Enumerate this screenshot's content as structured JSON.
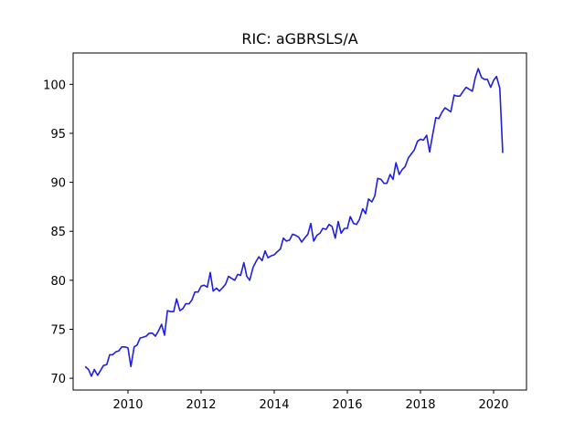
{
  "chart_data": {
    "type": "line",
    "title": "RIC: aGBRSLS/A",
    "xlabel": "",
    "ylabel": "",
    "xlim": [
      2008.5,
      2020.9
    ],
    "ylim": [
      68.8,
      103.2
    ],
    "x_ticks": [
      2010,
      2012,
      2014,
      2016,
      2018,
      2020
    ],
    "y_ticks": [
      70,
      75,
      80,
      85,
      90,
      95,
      100
    ],
    "grid": false,
    "series": [
      {
        "color": "#1f1fe0",
        "x": [
          2008.83,
          2008.92,
          2009.0,
          2009.08,
          2009.17,
          2009.25,
          2009.33,
          2009.42,
          2009.5,
          2009.58,
          2009.67,
          2009.75,
          2009.83,
          2009.92,
          2010.0,
          2010.08,
          2010.17,
          2010.25,
          2010.33,
          2010.42,
          2010.5,
          2010.58,
          2010.67,
          2010.75,
          2010.83,
          2010.92,
          2011.0,
          2011.08,
          2011.17,
          2011.25,
          2011.33,
          2011.42,
          2011.5,
          2011.58,
          2011.67,
          2011.75,
          2011.83,
          2011.92,
          2012.0,
          2012.08,
          2012.17,
          2012.25,
          2012.33,
          2012.42,
          2012.5,
          2012.58,
          2012.67,
          2012.75,
          2012.83,
          2012.92,
          2013.0,
          2013.08,
          2013.17,
          2013.25,
          2013.33,
          2013.42,
          2013.5,
          2013.58,
          2013.67,
          2013.75,
          2013.83,
          2013.92,
          2014.0,
          2014.08,
          2014.17,
          2014.25,
          2014.33,
          2014.42,
          2014.5,
          2014.58,
          2014.67,
          2014.75,
          2014.83,
          2014.92,
          2015.0,
          2015.08,
          2015.17,
          2015.25,
          2015.33,
          2015.42,
          2015.5,
          2015.58,
          2015.67,
          2015.75,
          2015.83,
          2015.92,
          2016.0,
          2016.08,
          2016.17,
          2016.25,
          2016.33,
          2016.42,
          2016.5,
          2016.58,
          2016.67,
          2016.75,
          2016.83,
          2016.92,
          2017.0,
          2017.08,
          2017.17,
          2017.25,
          2017.33,
          2017.42,
          2017.5,
          2017.58,
          2017.67,
          2017.75,
          2017.83,
          2017.92,
          2018.0,
          2018.08,
          2018.17,
          2018.25,
          2018.33,
          2018.42,
          2018.5,
          2018.58,
          2018.67,
          2018.75,
          2018.83,
          2018.92,
          2019.0,
          2019.08,
          2019.17,
          2019.25,
          2019.33,
          2019.42,
          2019.5,
          2019.58,
          2019.67,
          2019.75,
          2019.83,
          2019.92,
          2020.0,
          2020.08,
          2020.17,
          2020.25
        ],
        "values": [
          71.2,
          70.9,
          70.2,
          70.9,
          70.3,
          70.8,
          71.3,
          71.4,
          72.4,
          72.4,
          72.7,
          72.8,
          73.2,
          73.2,
          73.1,
          71.2,
          73.2,
          73.4,
          74.1,
          74.2,
          74.3,
          74.6,
          74.6,
          74.3,
          74.8,
          75.5,
          74.4,
          76.9,
          76.8,
          76.8,
          78.1,
          76.9,
          77.1,
          77.6,
          77.6,
          78.0,
          78.8,
          78.8,
          79.4,
          79.5,
          79.3,
          80.8,
          78.9,
          79.2,
          78.9,
          79.2,
          79.6,
          80.4,
          80.2,
          80.0,
          80.6,
          80.5,
          81.8,
          80.4,
          80.0,
          81.3,
          81.9,
          82.4,
          82.0,
          83.0,
          82.3,
          82.5,
          82.6,
          82.9,
          83.2,
          84.3,
          84.0,
          84.1,
          84.7,
          84.6,
          84.4,
          83.9,
          84.3,
          84.7,
          85.8,
          84.0,
          84.6,
          84.8,
          85.3,
          85.2,
          85.7,
          85.5,
          84.3,
          86.0,
          84.8,
          85.3,
          85.3,
          86.5,
          85.8,
          85.7,
          86.2,
          87.3,
          86.8,
          88.3,
          88.0,
          88.6,
          90.4,
          90.3,
          89.9,
          89.9,
          90.8,
          90.3,
          92.0,
          90.8,
          91.3,
          91.6,
          92.5,
          92.9,
          93.3,
          94.2,
          94.4,
          94.3,
          94.8,
          93.1,
          94.8,
          96.6,
          96.5,
          97.1,
          97.6,
          97.4,
          97.2,
          98.9,
          98.8,
          98.8,
          99.3,
          99.7,
          99.5,
          99.3,
          100.7,
          101.6,
          100.7,
          100.5,
          100.5,
          99.7,
          100.4,
          100.8,
          99.6,
          93.0
        ]
      }
    ]
  }
}
